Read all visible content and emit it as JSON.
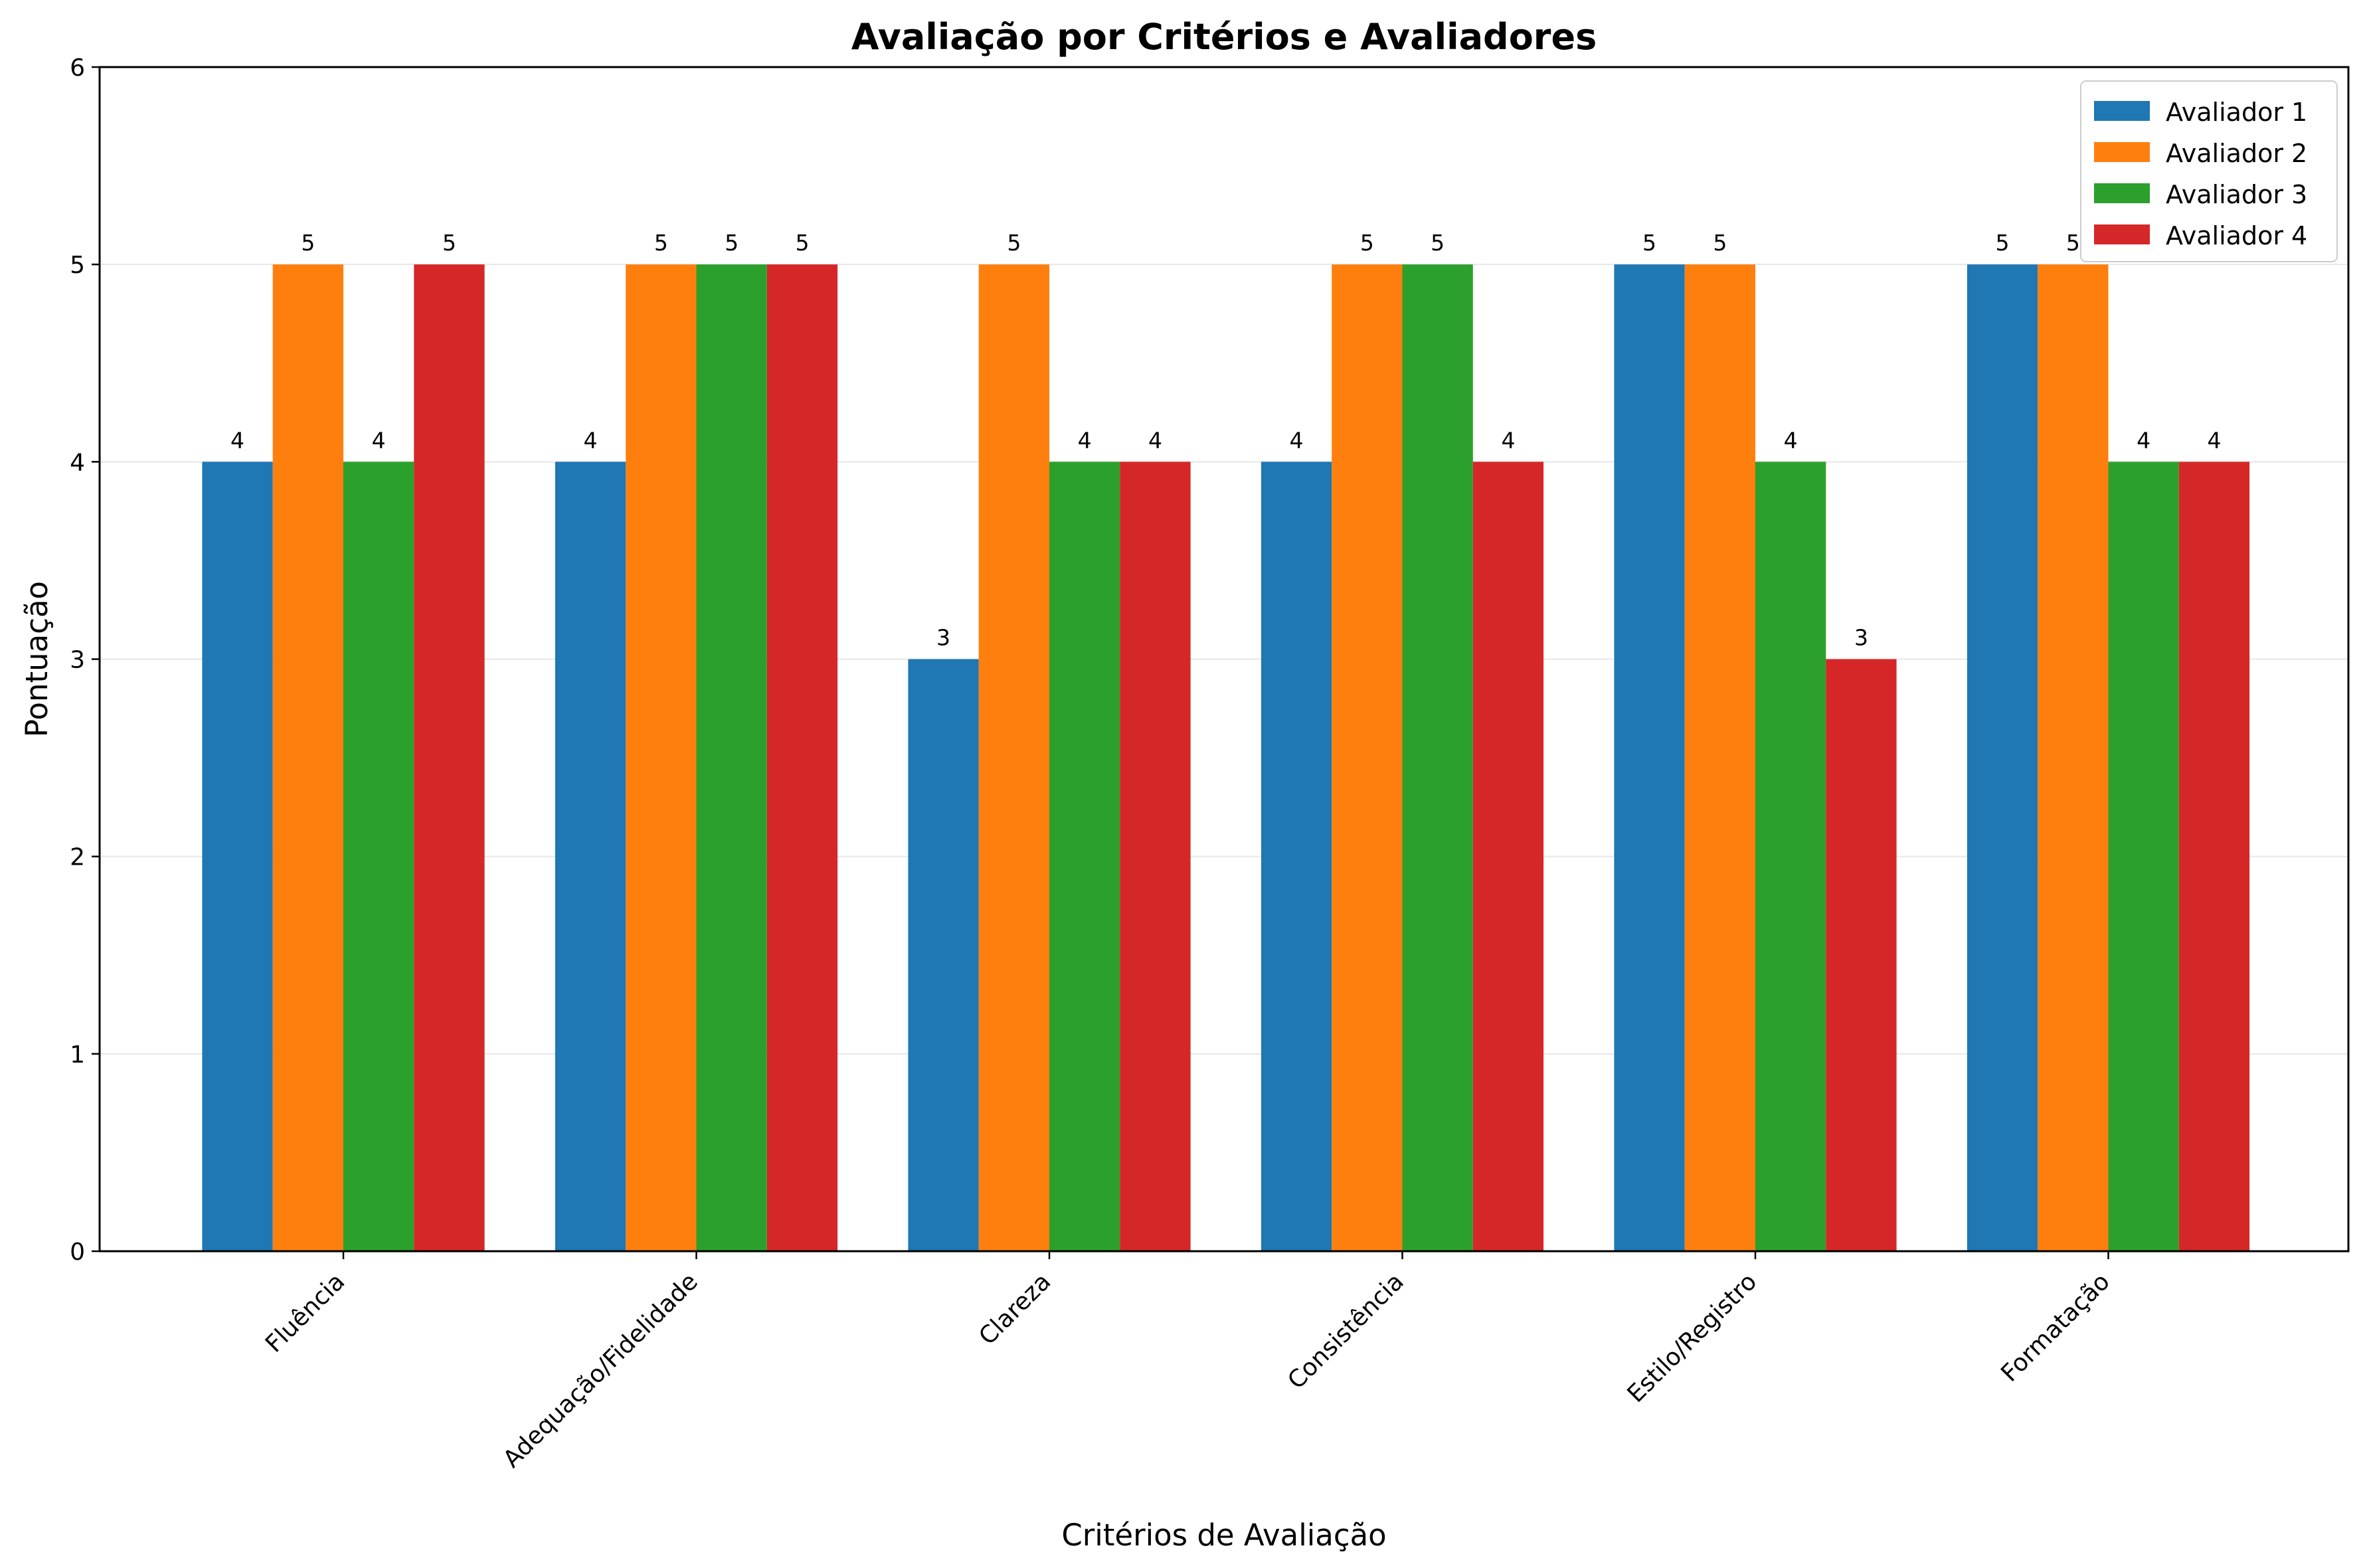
{
  "chart_data": {
    "type": "bar",
    "title": "Avaliação por Critérios e Avaliadores",
    "xlabel": "Critérios de Avaliação",
    "ylabel": "Pontuação",
    "ylim": [
      0,
      6
    ],
    "yticks": [
      0,
      1,
      2,
      3,
      4,
      5,
      6
    ],
    "grid": "horizontal",
    "legend_position": "top-right",
    "categories": [
      "Fluência",
      "Adequação/Fidelidade",
      "Clareza",
      "Consistência",
      "Estilo/Registro",
      "Formatação"
    ],
    "series": [
      {
        "name": "Avaliador 1",
        "color": "#1f77b4",
        "values": [
          4,
          4,
          3,
          4,
          5,
          5
        ]
      },
      {
        "name": "Avaliador 2",
        "color": "#ff7f0e",
        "values": [
          5,
          5,
          5,
          5,
          5,
          5
        ]
      },
      {
        "name": "Avaliador 3",
        "color": "#2ca02c",
        "values": [
          4,
          5,
          4,
          5,
          4,
          4
        ]
      },
      {
        "name": "Avaliador 4",
        "color": "#d62728",
        "values": [
          5,
          5,
          4,
          4,
          3,
          4
        ]
      }
    ]
  }
}
